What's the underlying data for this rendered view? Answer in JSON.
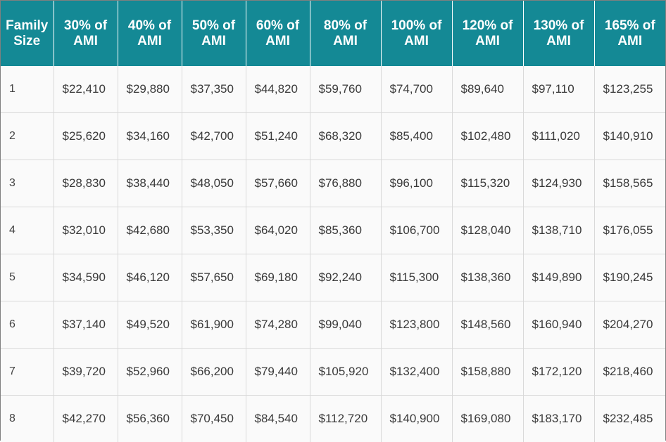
{
  "table": {
    "columns": [
      [
        "Family",
        "Size"
      ],
      [
        "30% of",
        "AMI"
      ],
      [
        "40% of",
        "AMI"
      ],
      [
        "50% of",
        "AMI"
      ],
      [
        "60% of",
        "AMI"
      ],
      [
        "80% of",
        "AMI"
      ],
      [
        "100% of",
        "AMI"
      ],
      [
        "120% of",
        "AMI"
      ],
      [
        "130% of",
        "AMI"
      ],
      [
        "165% of",
        "AMI"
      ]
    ],
    "rows": [
      [
        "1",
        "$22,410",
        "$29,880",
        "$37,350",
        "$44,820",
        "$59,760",
        "$74,700",
        "$89,640",
        "$97,110",
        "$123,255"
      ],
      [
        "2",
        "$25,620",
        "$34,160",
        "$42,700",
        "$51,240",
        "$68,320",
        "$85,400",
        "$102,480",
        "$111,020",
        "$140,910"
      ],
      [
        "3",
        "$28,830",
        "$38,440",
        "$48,050",
        "$57,660",
        "$76,880",
        "$96,100",
        "$115,320",
        "$124,930",
        "$158,565"
      ],
      [
        "4",
        "$32,010",
        "$42,680",
        "$53,350",
        "$64,020",
        "$85,360",
        "$106,700",
        "$128,040",
        "$138,710",
        "$176,055"
      ],
      [
        "5",
        "$34,590",
        "$46,120",
        "$57,650",
        "$69,180",
        "$92,240",
        "$115,300",
        "$138,360",
        "$149,890",
        "$190,245"
      ],
      [
        "6",
        "$37,140",
        "$49,520",
        "$61,900",
        "$74,280",
        "$99,040",
        "$123,800",
        "$148,560",
        "$160,940",
        "$204,270"
      ],
      [
        "7",
        "$39,720",
        "$52,960",
        "$66,200",
        "$79,440",
        "$105,920",
        "$132,400",
        "$158,880",
        "$172,120",
        "$218,460"
      ],
      [
        "8",
        "$42,270",
        "$56,360",
        "$70,450",
        "$84,540",
        "$112,720",
        "$140,900",
        "$169,080",
        "$183,170",
        "$232,485"
      ]
    ]
  },
  "colors": {
    "header_bg": "#148995",
    "header_text": "#ffffff",
    "cell_text": "#3a3a3a",
    "grid": "#d9d9d9"
  }
}
